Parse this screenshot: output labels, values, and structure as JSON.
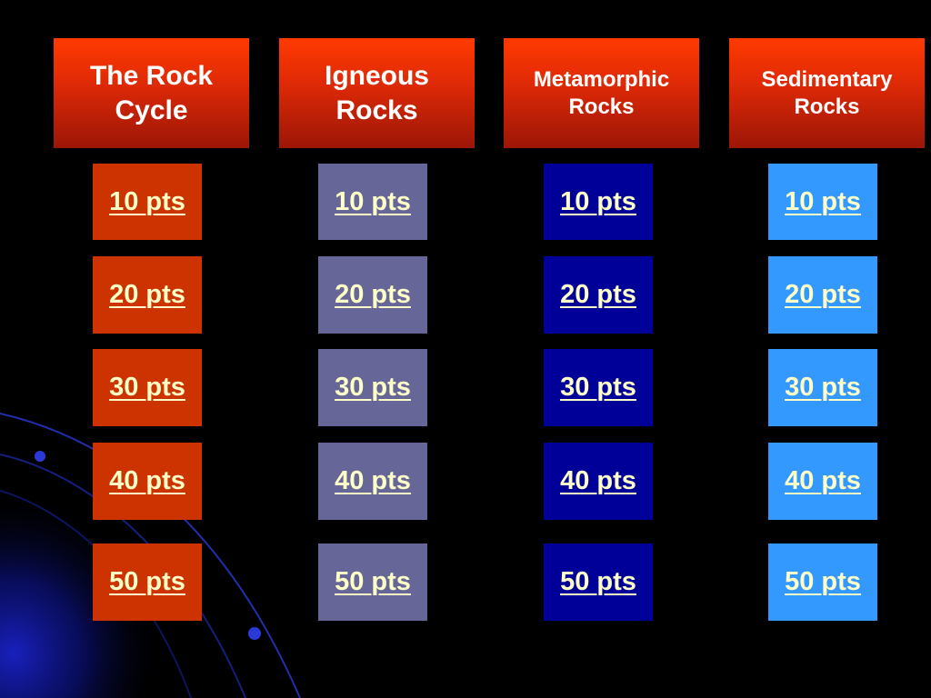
{
  "board": {
    "categories": [
      {
        "title": "The Rock\nCycle"
      },
      {
        "title": "Igneous\nRocks"
      },
      {
        "title": "Metamorphic\nRocks"
      },
      {
        "title": "Sedimentary\nRocks"
      }
    ],
    "point_labels": [
      "10 pts",
      "20 pts",
      "30 pts",
      "40 pts",
      "50 pts"
    ]
  },
  "colors": {
    "header_top": "#ff3a00",
    "header_bottom": "#9c1606",
    "tile_col_1": "#cc3300",
    "tile_col_2": "#666699",
    "tile_col_3": "#000099",
    "tile_col_4": "#3399ff",
    "link_text": "#ffffc8"
  }
}
